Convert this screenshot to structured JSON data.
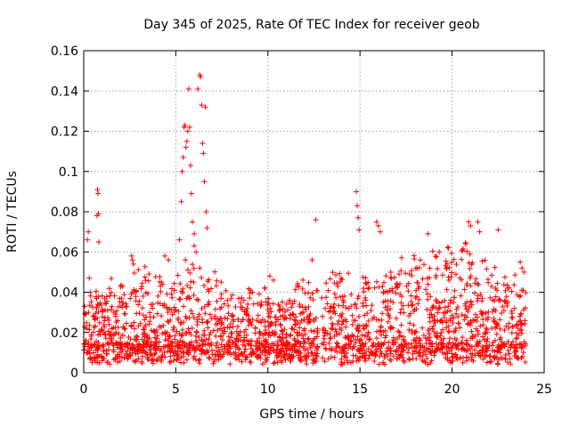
{
  "chart_data": {
    "type": "scatter",
    "title": "Day 345 of 2025, Rate Of TEC Index for receiver geob",
    "xlabel": "GPS time / hours",
    "ylabel": "ROTI / TECUs",
    "xlim": [
      0,
      25
    ],
    "ylim": [
      0,
      0.16
    ],
    "xticks": [
      0,
      5,
      10,
      15,
      20,
      25
    ],
    "yticks": [
      0,
      0.02,
      0.04,
      0.06,
      0.08,
      0.1,
      0.12,
      0.14,
      0.16
    ],
    "xtick_labels": [
      "0",
      "5",
      "10",
      "15",
      "20",
      "25"
    ],
    "ytick_labels": [
      "0",
      "0.02",
      "0.04",
      "0.06",
      "0.08",
      "0.1",
      "0.12",
      "0.14",
      "0.16"
    ],
    "grid": true,
    "marker": "+",
    "color": "#ff0000",
    "data_gaps_hours": [
      [
        12.7,
        12.9
      ]
    ],
    "points": [
      [
        0.05,
        0.033
      ],
      [
        0.1,
        0.029
      ],
      [
        0.15,
        0.022
      ],
      [
        0.2,
        0.066
      ],
      [
        0.25,
        0.07
      ],
      [
        0.3,
        0.047
      ],
      [
        0.35,
        0.04
      ],
      [
        0.75,
        0.091
      ],
      [
        0.78,
        0.089
      ],
      [
        0.72,
        0.078
      ],
      [
        0.8,
        0.079
      ],
      [
        0.82,
        0.065
      ],
      [
        2.6,
        0.058
      ],
      [
        2.65,
        0.056
      ],
      [
        2.7,
        0.054
      ],
      [
        4.4,
        0.058
      ],
      [
        4.6,
        0.056
      ],
      [
        5.2,
        0.066
      ],
      [
        5.3,
        0.085
      ],
      [
        5.35,
        0.1
      ],
      [
        5.4,
        0.107
      ],
      [
        5.45,
        0.122
      ],
      [
        5.5,
        0.123
      ],
      [
        5.55,
        0.112
      ],
      [
        5.6,
        0.115
      ],
      [
        5.65,
        0.12
      ],
      [
        5.7,
        0.141
      ],
      [
        5.75,
        0.122
      ],
      [
        5.8,
        0.103
      ],
      [
        5.85,
        0.089
      ],
      [
        5.9,
        0.075
      ],
      [
        6.0,
        0.069
      ],
      [
        6.1,
        0.06
      ],
      [
        6.2,
        0.141
      ],
      [
        6.3,
        0.148
      ],
      [
        6.35,
        0.147
      ],
      [
        6.4,
        0.133
      ],
      [
        6.45,
        0.114
      ],
      [
        6.5,
        0.109
      ],
      [
        6.55,
        0.095
      ],
      [
        6.6,
        0.132
      ],
      [
        6.65,
        0.08
      ],
      [
        6.7,
        0.072
      ],
      [
        10.1,
        0.048
      ],
      [
        10.3,
        0.046
      ],
      [
        11.9,
        0.046
      ],
      [
        12.4,
        0.056
      ],
      [
        12.6,
        0.076
      ],
      [
        14.8,
        0.09
      ],
      [
        14.85,
        0.083
      ],
      [
        14.9,
        0.077
      ],
      [
        14.95,
        0.071
      ],
      [
        15.9,
        0.075
      ],
      [
        16.0,
        0.073
      ],
      [
        16.1,
        0.07
      ],
      [
        18.1,
        0.052
      ],
      [
        18.7,
        0.069
      ],
      [
        19.3,
        0.06
      ],
      [
        20.9,
        0.075
      ],
      [
        21.0,
        0.073
      ],
      [
        21.4,
        0.075
      ],
      [
        21.5,
        0.07
      ],
      [
        22.5,
        0.071
      ],
      [
        23.7,
        0.055
      ],
      [
        23.8,
        0.052
      ],
      [
        23.9,
        0.05
      ]
    ]
  }
}
